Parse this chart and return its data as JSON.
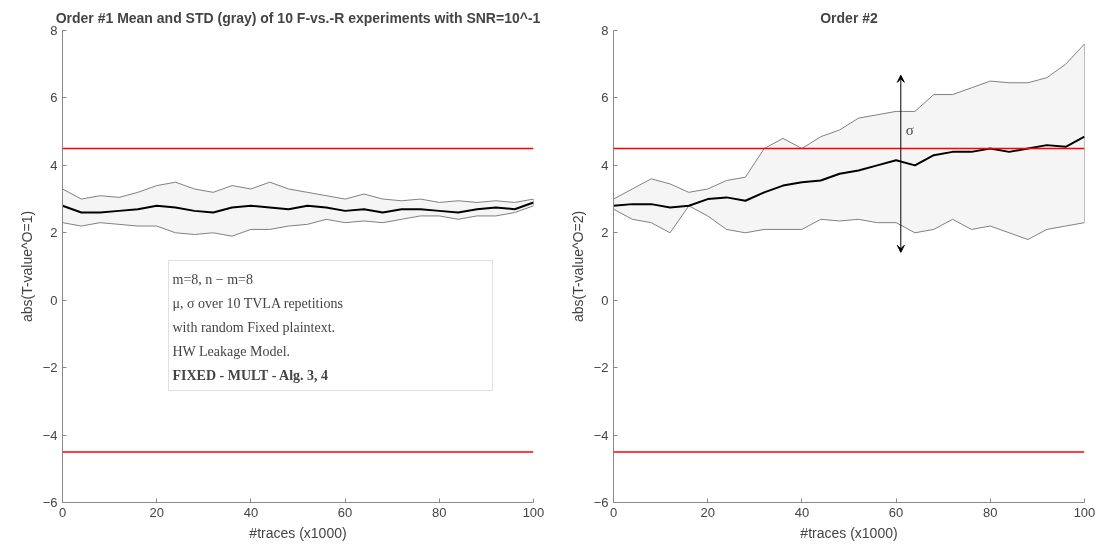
{
  "chart_data": [
    {
      "type": "line",
      "title": "Order #1 Mean and STD (gray) of 10 F-vs.-R experiments with SNR=10^-1",
      "xlabel": "#traces (x1000)",
      "ylabel": "abs(T-value^O=1)",
      "x": [
        0,
        4,
        8,
        12,
        16,
        20,
        24,
        28,
        32,
        36,
        40,
        44,
        48,
        52,
        56,
        60,
        64,
        68,
        72,
        76,
        80,
        84,
        88,
        92,
        96,
        100
      ],
      "series": [
        {
          "color": "#000000",
          "values": [
            2.8,
            2.6,
            2.6,
            2.65,
            2.7,
            2.8,
            2.75,
            2.65,
            2.6,
            2.75,
            2.8,
            2.75,
            2.7,
            2.8,
            2.75,
            2.65,
            2.7,
            2.6,
            2.7,
            2.7,
            2.65,
            2.6,
            2.7,
            2.75,
            2.7,
            2.9
          ],
          "upper": [
            3.3,
            3.0,
            3.1,
            3.05,
            3.2,
            3.4,
            3.5,
            3.3,
            3.2,
            3.4,
            3.3,
            3.5,
            3.3,
            3.2,
            3.1,
            3.0,
            3.15,
            3.0,
            2.95,
            3.0,
            2.9,
            2.95,
            2.9,
            2.95,
            2.9,
            3.0
          ],
          "lower": [
            2.3,
            2.2,
            2.3,
            2.25,
            2.2,
            2.2,
            2.0,
            1.95,
            2.0,
            1.9,
            2.1,
            2.1,
            2.2,
            2.25,
            2.4,
            2.3,
            2.35,
            2.3,
            2.4,
            2.5,
            2.5,
            2.4,
            2.5,
            2.5,
            2.6,
            2.8
          ]
        }
      ],
      "xlim": [
        0,
        100
      ],
      "xticks": [
        0,
        20,
        40,
        60,
        80,
        100
      ],
      "ylim": [
        -6,
        8
      ],
      "yticks": [
        -6,
        -4,
        -2,
        0,
        2,
        4,
        6,
        8
      ],
      "ref_lines": [
        {
          "axis": "y",
          "value": 4.5,
          "color": "#ff0000"
        },
        {
          "axis": "y",
          "value": -4.5,
          "color": "#ff0000"
        }
      ],
      "annotations": [
        "m=8, n − m=8",
        "μ, σ over 10 TVLA repetitions",
        "with random Fixed plaintext.",
        "HW Leakage Model.",
        "FIXED - MULT - Alg. 3, 4"
      ],
      "grid": false
    },
    {
      "type": "line",
      "title": "Order #2",
      "xlabel": "#traces (x1000)",
      "ylabel": "abs(T-value^O=2)",
      "x": [
        0,
        4,
        8,
        12,
        16,
        20,
        24,
        28,
        32,
        36,
        40,
        44,
        48,
        52,
        56,
        60,
        64,
        68,
        72,
        76,
        80,
        84,
        88,
        92,
        96,
        100
      ],
      "series": [
        {
          "color": "#000000",
          "values": [
            2.8,
            2.85,
            2.85,
            2.75,
            2.8,
            3.0,
            3.05,
            2.95,
            3.2,
            3.4,
            3.5,
            3.55,
            3.75,
            3.85,
            4.0,
            4.15,
            4.0,
            4.3,
            4.4,
            4.4,
            4.5,
            4.4,
            4.5,
            4.6,
            4.55,
            4.85
          ],
          "upper": [
            3.0,
            3.3,
            3.6,
            3.45,
            3.2,
            3.3,
            3.55,
            3.65,
            4.5,
            4.8,
            4.5,
            4.85,
            5.05,
            5.4,
            5.5,
            5.6,
            5.6,
            6.1,
            6.1,
            6.3,
            6.5,
            6.45,
            6.45,
            6.6,
            7.0,
            7.6
          ],
          "lower": [
            2.7,
            2.4,
            2.3,
            2.0,
            2.8,
            2.5,
            2.1,
            2.0,
            2.1,
            2.1,
            2.1,
            2.4,
            2.35,
            2.4,
            2.3,
            2.3,
            2.0,
            2.1,
            2.4,
            2.1,
            2.2,
            2.0,
            1.8,
            2.1,
            2.2,
            2.3
          ]
        }
      ],
      "xlim": [
        0,
        100
      ],
      "xticks": [
        0,
        20,
        40,
        60,
        80,
        100
      ],
      "ylim": [
        -6,
        8
      ],
      "yticks": [
        -6,
        -4,
        -2,
        0,
        2,
        4,
        6,
        8
      ],
      "ref_lines": [
        {
          "axis": "y",
          "value": 4.5,
          "color": "#ff0000"
        },
        {
          "axis": "y",
          "value": -4.5,
          "color": "#ff0000"
        }
      ],
      "annotations": [
        "σ"
      ],
      "grid": false
    }
  ]
}
